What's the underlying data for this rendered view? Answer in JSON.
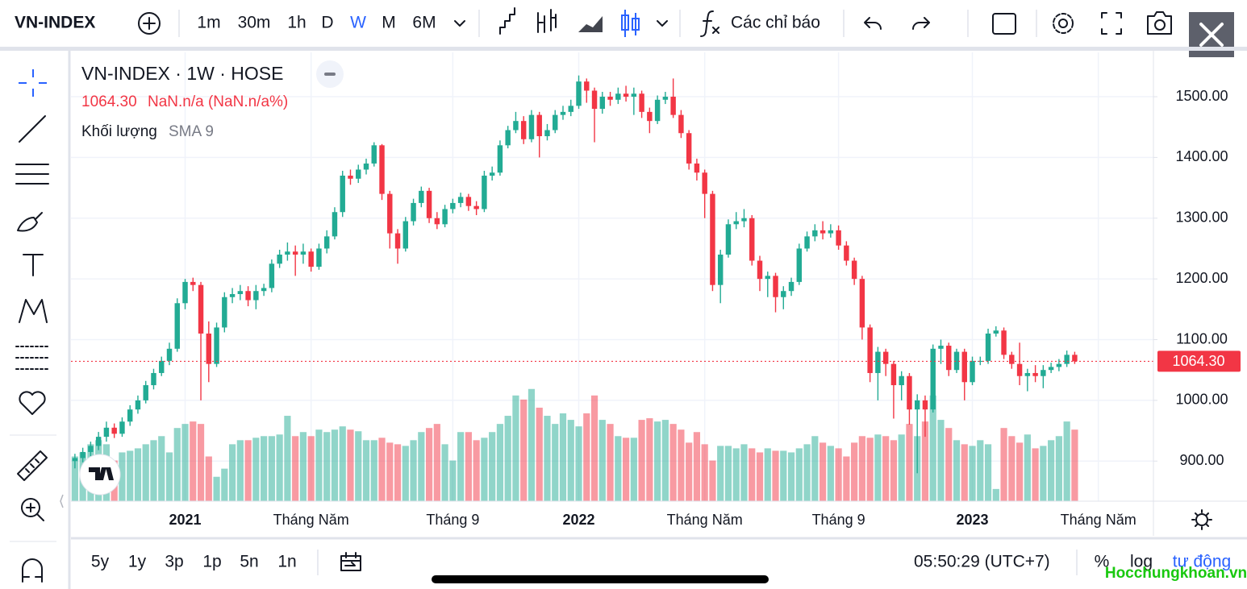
{
  "toolbar": {
    "symbol": "VN-INDEX",
    "intervals": [
      "1m",
      "30m",
      "1h",
      "D",
      "W",
      "M",
      "6M"
    ],
    "active_interval": 4,
    "indicators": "Các chỉ báo"
  },
  "chart_data": {
    "type": "candlestick",
    "title": "VN-INDEX · 1W · HOSE",
    "value_label": "1064.30",
    "change_label": "NaN.n/a (NaN.n/a%)",
    "volume_label": "Khối lượng",
    "volume_ma_label": "SMA 9",
    "up_color": "#22ab94",
    "down_color": "#f23645",
    "grid": true,
    "open": [
      900,
      905,
      915,
      925,
      940,
      955,
      945,
      965,
      985,
      1000,
      1025,
      1045,
      1065,
      1085,
      1160,
      1195,
      1190,
      1110,
      1060,
      1120,
      1170,
      1175,
      1180,
      1165,
      1180,
      1185,
      1225,
      1240,
      1245,
      1240,
      1245,
      1220,
      1250,
      1270,
      1310,
      1370,
      1365,
      1380,
      1390,
      1420,
      1340,
      1275,
      1250,
      1295,
      1325,
      1345,
      1300,
      1290,
      1315,
      1325,
      1335,
      1320,
      1315,
      1370,
      1375,
      1420,
      1445,
      1460,
      1430,
      1470,
      1435,
      1445,
      1470,
      1475,
      1485,
      1525,
      1510,
      1480,
      1500,
      1495,
      1505,
      1500,
      1505,
      1475,
      1460,
      1495,
      1500,
      1470,
      1440,
      1390,
      1375,
      1340,
      1190,
      1240,
      1290,
      1295,
      1300,
      1230,
      1200,
      1205,
      1170,
      1180,
      1195,
      1250,
      1270,
      1280,
      1275,
      1280,
      1255,
      1230,
      1200,
      1120,
      1045,
      1080,
      1060,
      1025,
      1040,
      985,
      1000,
      985,
      1085,
      1090,
      1050,
      1080,
      1030,
      1065,
      1065,
      1110,
      1115,
      1075,
      1060,
      1040,
      1045,
      1040,
      1050,
      1055,
      1060,
      1075
    ],
    "high": [
      912,
      922,
      932,
      948,
      965,
      962,
      972,
      992,
      1008,
      1032,
      1052,
      1072,
      1095,
      1168,
      1200,
      1202,
      1195,
      1130,
      1128,
      1178,
      1185,
      1190,
      1188,
      1190,
      1192,
      1232,
      1248,
      1260,
      1255,
      1258,
      1250,
      1258,
      1280,
      1318,
      1378,
      1380,
      1388,
      1398,
      1425,
      1422,
      1345,
      1282,
      1302,
      1332,
      1352,
      1350,
      1310,
      1322,
      1332,
      1342,
      1340,
      1328,
      1378,
      1385,
      1428,
      1452,
      1475,
      1468,
      1478,
      1475,
      1455,
      1478,
      1485,
      1495,
      1535,
      1530,
      1515,
      1508,
      1508,
      1515,
      1518,
      1515,
      1510,
      1482,
      1502,
      1508,
      1530,
      1478,
      1445,
      1398,
      1380,
      1345,
      1248,
      1298,
      1310,
      1315,
      1305,
      1238,
      1212,
      1210,
      1188,
      1202,
      1258,
      1278,
      1290,
      1295,
      1290,
      1288,
      1262,
      1235,
      1205,
      1125,
      1088,
      1085,
      1065,
      1048,
      1045,
      1010,
      1008,
      1092,
      1100,
      1095,
      1085,
      1085,
      1072,
      1072,
      1118,
      1122,
      1120,
      1080,
      1095,
      1052,
      1058,
      1058,
      1062,
      1068,
      1082,
      1080
    ],
    "low": [
      888,
      898,
      908,
      918,
      932,
      938,
      940,
      958,
      978,
      995,
      1018,
      1040,
      1058,
      1080,
      1150,
      1180,
      1000,
      1030,
      1055,
      1112,
      1160,
      1165,
      1155,
      1150,
      1172,
      1178,
      1218,
      1230,
      1205,
      1225,
      1212,
      1215,
      1242,
      1265,
      1302,
      1355,
      1358,
      1372,
      1385,
      1330,
      1250,
      1225,
      1245,
      1288,
      1318,
      1292,
      1282,
      1285,
      1308,
      1318,
      1312,
      1305,
      1310,
      1362,
      1370,
      1415,
      1440,
      1422,
      1425,
      1400,
      1428,
      1440,
      1462,
      1468,
      1480,
      1490,
      1425,
      1472,
      1485,
      1488,
      1492,
      1470,
      1465,
      1440,
      1455,
      1488,
      1465,
      1432,
      1380,
      1362,
      1300,
      1180,
      1160,
      1235,
      1282,
      1285,
      1222,
      1180,
      1170,
      1145,
      1150,
      1172,
      1190,
      1245,
      1262,
      1265,
      1268,
      1248,
      1222,
      1190,
      1100,
      1030,
      1000,
      1040,
      970,
      1000,
      960,
      880,
      940,
      980,
      1060,
      1040,
      1045,
      1000,
      1025,
      1058,
      1060,
      1105,
      1068,
      1052,
      1025,
      1015,
      1030,
      1020,
      1045,
      1048,
      1055,
      1060
    ],
    "close": [
      905,
      915,
      925,
      940,
      955,
      945,
      965,
      985,
      1000,
      1025,
      1045,
      1065,
      1085,
      1160,
      1195,
      1190,
      1110,
      1060,
      1120,
      1170,
      1175,
      1180,
      1165,
      1180,
      1185,
      1225,
      1240,
      1245,
      1240,
      1245,
      1220,
      1250,
      1270,
      1310,
      1370,
      1365,
      1380,
      1390,
      1420,
      1340,
      1275,
      1250,
      1295,
      1325,
      1345,
      1300,
      1290,
      1315,
      1325,
      1335,
      1320,
      1315,
      1370,
      1375,
      1420,
      1445,
      1460,
      1430,
      1470,
      1435,
      1445,
      1470,
      1475,
      1485,
      1525,
      1510,
      1480,
      1500,
      1495,
      1505,
      1500,
      1505,
      1475,
      1460,
      1495,
      1500,
      1470,
      1440,
      1390,
      1375,
      1340,
      1190,
      1240,
      1290,
      1295,
      1300,
      1230,
      1200,
      1205,
      1170,
      1180,
      1195,
      1250,
      1270,
      1280,
      1275,
      1280,
      1255,
      1230,
      1200,
      1120,
      1045,
      1080,
      1060,
      1025,
      1040,
      985,
      1000,
      985,
      1085,
      1090,
      1050,
      1080,
      1030,
      1065,
      1065,
      1110,
      1115,
      1075,
      1060,
      1040,
      1045,
      1040,
      1050,
      1055,
      1060,
      1075,
      1064.3
    ],
    "volume": [
      55,
      60,
      70,
      75,
      70,
      50,
      60,
      62,
      65,
      70,
      75,
      80,
      60,
      90,
      95,
      98,
      95,
      55,
      30,
      40,
      70,
      75,
      75,
      78,
      80,
      80,
      82,
      105,
      80,
      85,
      80,
      88,
      85,
      88,
      92,
      88,
      86,
      75,
      75,
      78,
      72,
      70,
      68,
      75,
      85,
      90,
      95,
      70,
      50,
      85,
      85,
      75,
      78,
      85,
      95,
      105,
      130,
      125,
      138,
      115,
      105,
      95,
      108,
      100,
      92,
      108,
      130,
      100,
      95,
      80,
      78,
      78,
      100,
      102,
      98,
      100,
      95,
      88,
      72,
      85,
      70,
      50,
      68,
      68,
      65,
      70,
      65,
      60,
      65,
      62,
      62,
      60,
      65,
      70,
      80,
      72,
      68,
      65,
      55,
      72,
      80,
      78,
      82,
      80,
      75,
      82,
      95,
      80,
      98,
      130,
      100,
      90,
      75,
      70,
      68,
      75,
      70,
      15,
      90,
      80,
      72,
      82,
      65,
      68,
      75,
      80,
      98,
      88
    ],
    "last_price": 1064.3,
    "last_price_label": "1064.30",
    "xlim": [
      -0.5,
      137
    ],
    "xticks": [
      {
        "value": 14,
        "label": "2021"
      },
      {
        "value": 30,
        "label": "Tháng Năm"
      },
      {
        "value": 48,
        "label": "Tháng 9"
      },
      {
        "value": 64,
        "label": "2022"
      },
      {
        "value": 80,
        "label": "Tháng Năm"
      },
      {
        "value": 97,
        "label": "Tháng 9"
      },
      {
        "value": 114,
        "label": "2023"
      },
      {
        "value": 130,
        "label": "Tháng Năm"
      }
    ],
    "ylim": [
      834,
      1573
    ],
    "yticks": [
      {
        "value": 900,
        "label": "900.00"
      },
      {
        "value": 1000,
        "label": "1000.00"
      },
      {
        "value": 1100,
        "label": "1100.00"
      },
      {
        "value": 1200,
        "label": "1200.00"
      },
      {
        "value": 1300,
        "label": "1300.00"
      },
      {
        "value": 1400,
        "label": "1400.00"
      },
      {
        "value": 1500,
        "label": "1500.00"
      }
    ]
  },
  "bottom_bar": {
    "ranges": [
      "5y",
      "1y",
      "3p",
      "1p",
      "5n",
      "1n"
    ],
    "clock": "05:50:29 (UTC+7)",
    "options": [
      "%",
      "log",
      "tự động"
    ],
    "active_option": 2,
    "watermark": "Hocchungkhoan.vn"
  }
}
